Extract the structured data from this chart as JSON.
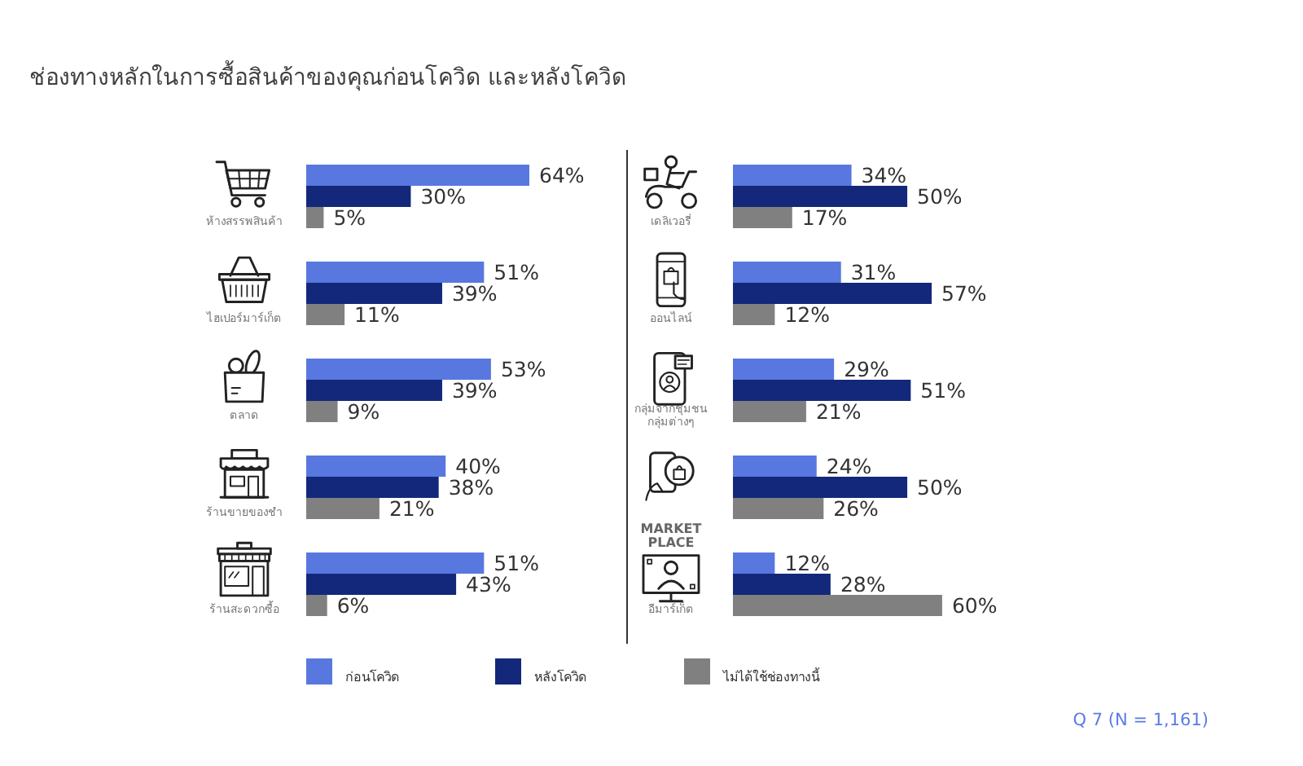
{
  "chart_data": [
    {
      "type": "bar",
      "orientation": "horizontal",
      "title": "ช่องทางหลักในการซื้อสินค้าของคุณก่อนโควิด และหลังโควิด",
      "categories": [
        "ห้างสรรพสินค้า",
        "ไฮเปอร์มาร์เก็ต",
        "ตลาด",
        "ร้านขายของชำ",
        "ร้านสะดวกซื้อ"
      ],
      "series": [
        {
          "name": "ก่อนโควิด",
          "color": "#5878e0",
          "values": [
            64,
            51,
            53,
            40,
            51
          ],
          "value_labels": [
            "64%",
            "51%",
            "53%",
            "40%",
            "51%"
          ]
        },
        {
          "name": "หลังโควิด",
          "color": "#13287a",
          "values": [
            30,
            39,
            39,
            38,
            43
          ],
          "value_labels": [
            "30%",
            "39%",
            "39%",
            "38%",
            "43%"
          ]
        },
        {
          "name": "ไม่ได้ใช้ช่องทางนี้",
          "color": "#808080",
          "values": [
            5,
            11,
            9,
            21,
            6
          ],
          "value_labels": [
            "5%",
            "11%",
            "9%",
            "21%",
            "6%"
          ]
        }
      ],
      "legend": "bottom"
    },
    {
      "type": "bar",
      "orientation": "horizontal",
      "categories": [
        "เดลิเวอรี่",
        "ออนไลน์",
        "กลุ่มจากชุมชน กลุ่มต่างๆ",
        null,
        "อีมาร์เก็ต"
      ],
      "series": [
        {
          "color": "#5878e0",
          "values": [
            34,
            31,
            29,
            24,
            12
          ],
          "value_labels": [
            "34%",
            "31%",
            "29%",
            "24%",
            "12%"
          ]
        },
        {
          "color": "#13287a",
          "values": [
            50,
            57,
            51,
            50,
            28
          ],
          "value_labels": [
            "50%",
            "57%",
            "51%",
            "50%",
            "28%"
          ]
        },
        {
          "color": "#808080",
          "values": [
            17,
            12,
            21,
            26,
            60
          ],
          "value_labels": [
            "17%",
            "12%",
            "21%",
            "26%",
            "60%"
          ]
        }
      ],
      "annotations": [
        "MARKET PLACE",
        "Q 7 (N = 1,161)"
      ]
    }
  ]
}
